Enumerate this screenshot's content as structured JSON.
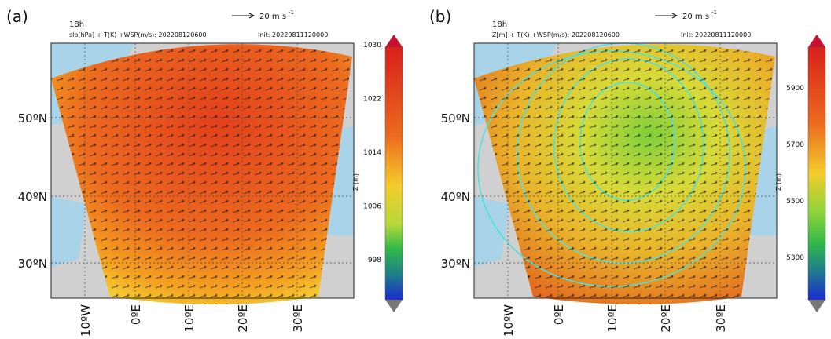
{
  "panels": [
    {
      "label": "(a)",
      "time": "18h",
      "subtitle": "slp[hPa] + T(K) +WSP(m/s): 202208120600",
      "init": "Init: 20220811120000",
      "scale": "20 m s",
      "scale_exp": "-1",
      "colorbar": {
        "label": "Z (m)",
        "ticks": [
          "1030",
          "1022",
          "1014",
          "1006",
          "998"
        ]
      },
      "lat_labels": [
        "50ºN",
        "40ºN",
        "30ºN"
      ],
      "lon_labels": [
        "10ºW",
        "0ºE",
        "10ºE",
        "20ºE",
        "30ºE"
      ]
    },
    {
      "label": "(b)",
      "time": "18h",
      "subtitle": "Z[m] + T(K) +WSP(m/s): 202208120600",
      "init": "Init: 20220811120000",
      "scale": "20 m s",
      "scale_exp": "-1",
      "colorbar": {
        "label": "Z (m)",
        "ticks": [
          "5900",
          "5700",
          "5500",
          "5300"
        ]
      },
      "lat_labels": [
        "50ºN",
        "40ºN",
        "30ºN"
      ],
      "lon_labels": [
        "10ºW",
        "0ºE",
        "10ºE",
        "20ºE",
        "30ºE"
      ]
    }
  ]
}
